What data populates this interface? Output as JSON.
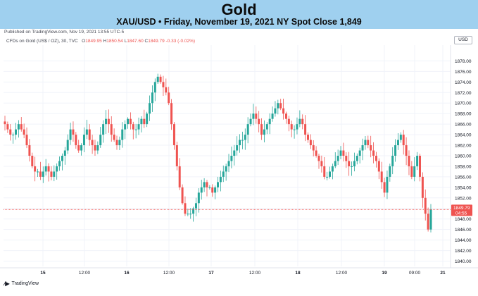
{
  "header": {
    "title": "Gold",
    "subtitle": "XAU/USD • Friday, November 19, 2021 NY Spot Close 1,849"
  },
  "published_note": "Published on TradingView.com, Nov 19, 2021 13:55 UTC-5",
  "currency_badge": "USD",
  "legend": {
    "instrument": "CFDs on Gold (US$ / OZ), 30, TVC",
    "open_label": "O",
    "open_value": "1849.95",
    "high_label": "H",
    "high_value": "1850.54",
    "low_label": "L",
    "low_value": "1847.60",
    "close_label": "C",
    "close_value": "1849.79",
    "change": "-0.33 (-0.02%)"
  },
  "footer": {
    "logo_icon": "tradingview-icon",
    "brand": "TradingView"
  },
  "colors": {
    "up": "#26a69a",
    "down": "#ef5350",
    "banner": "#9fd0ef",
    "price_line": "#ef5350",
    "grid": "#f0f3fa",
    "axis_text": "#131722"
  },
  "chart_data": {
    "type": "candlestick",
    "interval": "30 minutes",
    "ylim": [
      1839,
      1881
    ],
    "y_ticks": [
      "1878.00",
      "1876.00",
      "1874.00",
      "1872.00",
      "1870.00",
      "1868.00",
      "1866.00",
      "1864.00",
      "1862.00",
      "1860.00",
      "1858.00",
      "1856.00",
      "1854.00",
      "1852.00",
      "1850.00",
      "1848.00",
      "1846.00",
      "1844.00",
      "1842.00",
      "1840.00"
    ],
    "x_ticks": [
      {
        "label": "15",
        "bold": true
      },
      {
        "label": "12:00",
        "bold": false
      },
      {
        "label": "16",
        "bold": true
      },
      {
        "label": "12:00",
        "bold": false
      },
      {
        "label": "17",
        "bold": true
      },
      {
        "label": "12:00",
        "bold": false
      },
      {
        "label": "18",
        "bold": true
      },
      {
        "label": "12:00",
        "bold": false
      },
      {
        "label": "19",
        "bold": true
      },
      {
        "label": "09:00",
        "bold": false
      },
      {
        "label": "21",
        "bold": true
      }
    ],
    "last_price": {
      "value": "1849.79",
      "countdown": "04:55"
    },
    "series_approx": [
      [
        1866,
        1865,
        1864,
        1864,
        1865,
        1866,
        1865,
        1864,
        1862,
        1860,
        1858,
        1857,
        1857,
        1856,
        1857,
        1858,
        1857,
        1856,
        1857,
        1858,
        1859,
        1860,
        1861,
        1863,
        1865,
        1864,
        1862,
        1861,
        1862,
        1864,
        1865,
        1863,
        1862,
        1861,
        1862,
        1864,
        1866,
        1867,
        1866,
        1864,
        1863,
        1862,
        1863,
        1865,
        1866,
        1867,
        1866,
        1865
      ],
      [
        1865,
        1866,
        1867,
        1866,
        1868,
        1870,
        1872,
        1874,
        1875,
        1874,
        1873,
        1872,
        1870,
        1866,
        1862,
        1858,
        1854,
        1851,
        1849,
        1849,
        1849,
        1850,
        1851,
        1853,
        1854,
        1855,
        1854,
        1854,
        1853,
        1854,
        1855,
        1856,
        1857,
        1858,
        1859,
        1860,
        1861,
        1862,
        1863,
        1863,
        1864,
        1866,
        1867,
        1868,
        1867,
        1866,
        1864,
        1865
      ],
      [
        1866,
        1867,
        1868,
        1869,
        1870,
        1869,
        1868,
        1867,
        1866,
        1865,
        1865,
        1866,
        1867,
        1866,
        1864,
        1863,
        1862,
        1861,
        1860,
        1859,
        1858,
        1856,
        1856,
        1857,
        1858,
        1859,
        1860,
        1861,
        1860,
        1859,
        1858,
        1858,
        1859,
        1860,
        1861,
        1862,
        1863,
        1862,
        1861,
        1860,
        1859,
        1857,
        1855,
        1853,
        1856,
        1858,
        1860,
        1862
      ],
      [
        1863,
        1864,
        1862,
        1860,
        1858,
        1856,
        1858,
        1860,
        1856,
        1852,
        1849,
        1846,
        1849.79
      ]
    ]
  }
}
